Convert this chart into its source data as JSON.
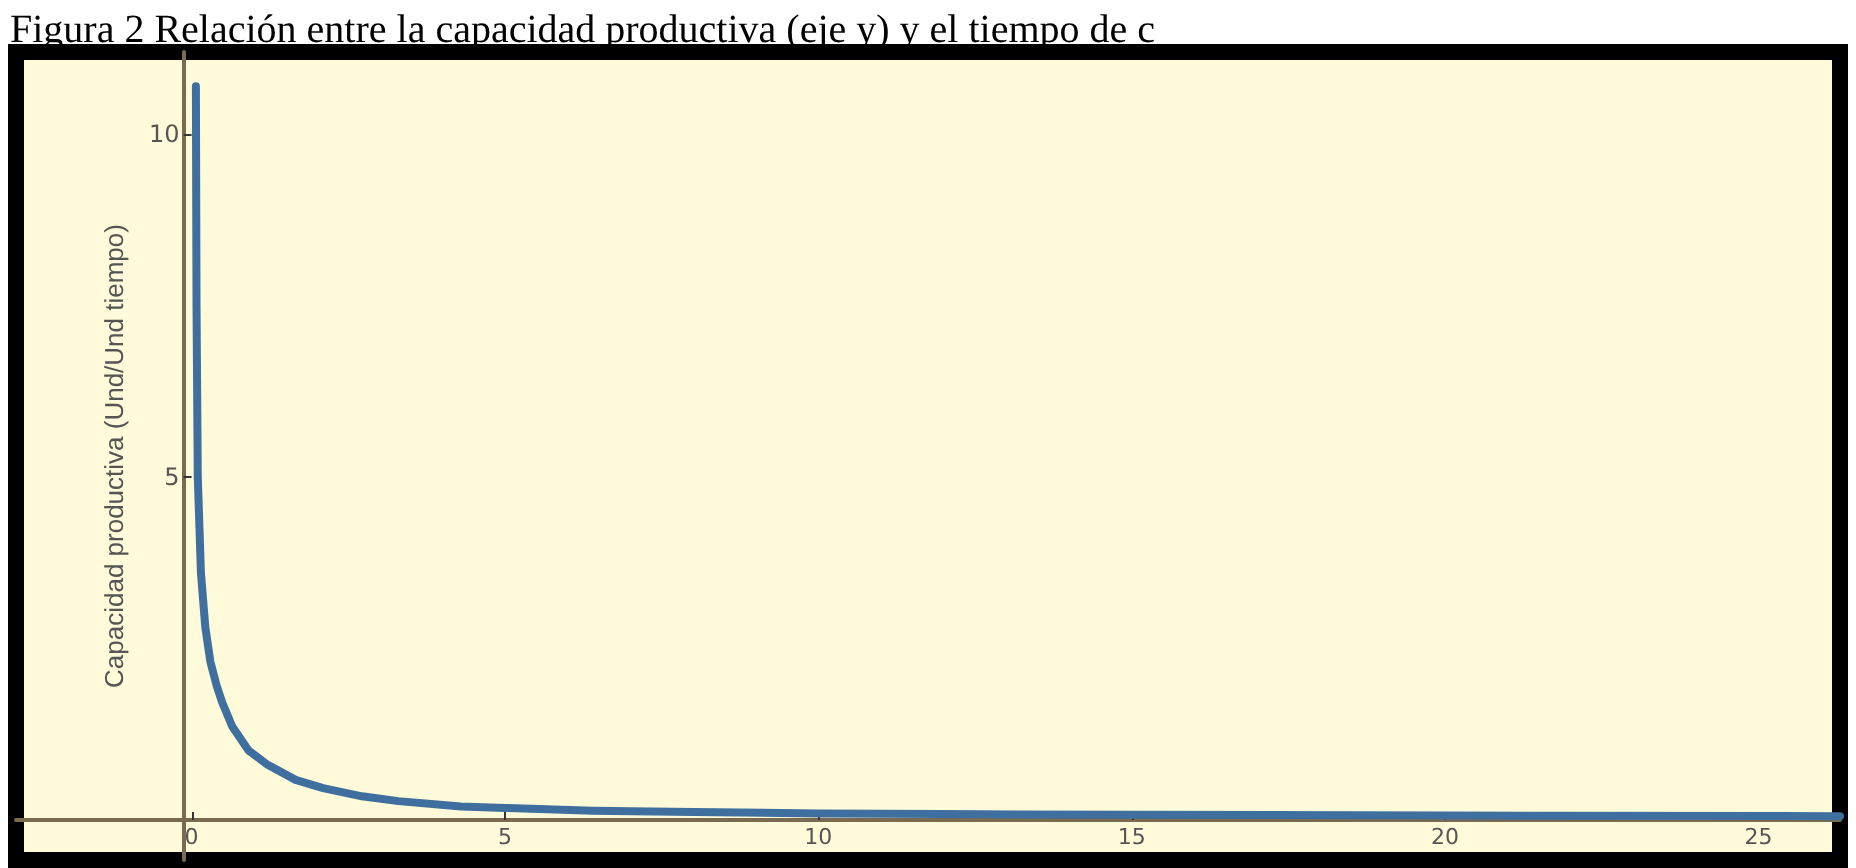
{
  "chart_data": {
    "type": "line",
    "title": "Figura 2 Relación entre la capacidad productiva (eje y) y el tiempo de c",
    "ylabel": "Capacidad productiva (Und/Und tiempo)",
    "x": [
      0.07,
      0.08,
      0.1,
      0.15,
      0.22,
      0.3,
      0.4,
      0.49,
      0.65,
      0.91,
      1.2,
      1.66,
      2.1,
      2.72,
      3.3,
      4.3,
      5,
      6.4,
      8,
      10,
      12,
      15,
      20,
      26.3
    ],
    "series": [
      {
        "color": "#3f6f9f",
        "values": [
          10.7,
          7.5,
          5.0,
          3.6,
          2.8,
          2.3,
          1.95,
          1.7,
          1.35,
          1.0,
          0.8,
          0.57,
          0.45,
          0.33,
          0.26,
          0.18,
          0.16,
          0.12,
          0.1,
          0.08,
          0.07,
          0.06,
          0.05,
          0.04
        ]
      }
    ],
    "xlim": [
      -2.8,
      26.3
    ],
    "ylim": [
      -0.6,
      11.2
    ],
    "xticks": [
      0,
      5,
      10,
      15,
      20,
      25
    ],
    "yticks": [
      5,
      10
    ],
    "grid": false,
    "marker": "none",
    "line_style": "solid"
  }
}
